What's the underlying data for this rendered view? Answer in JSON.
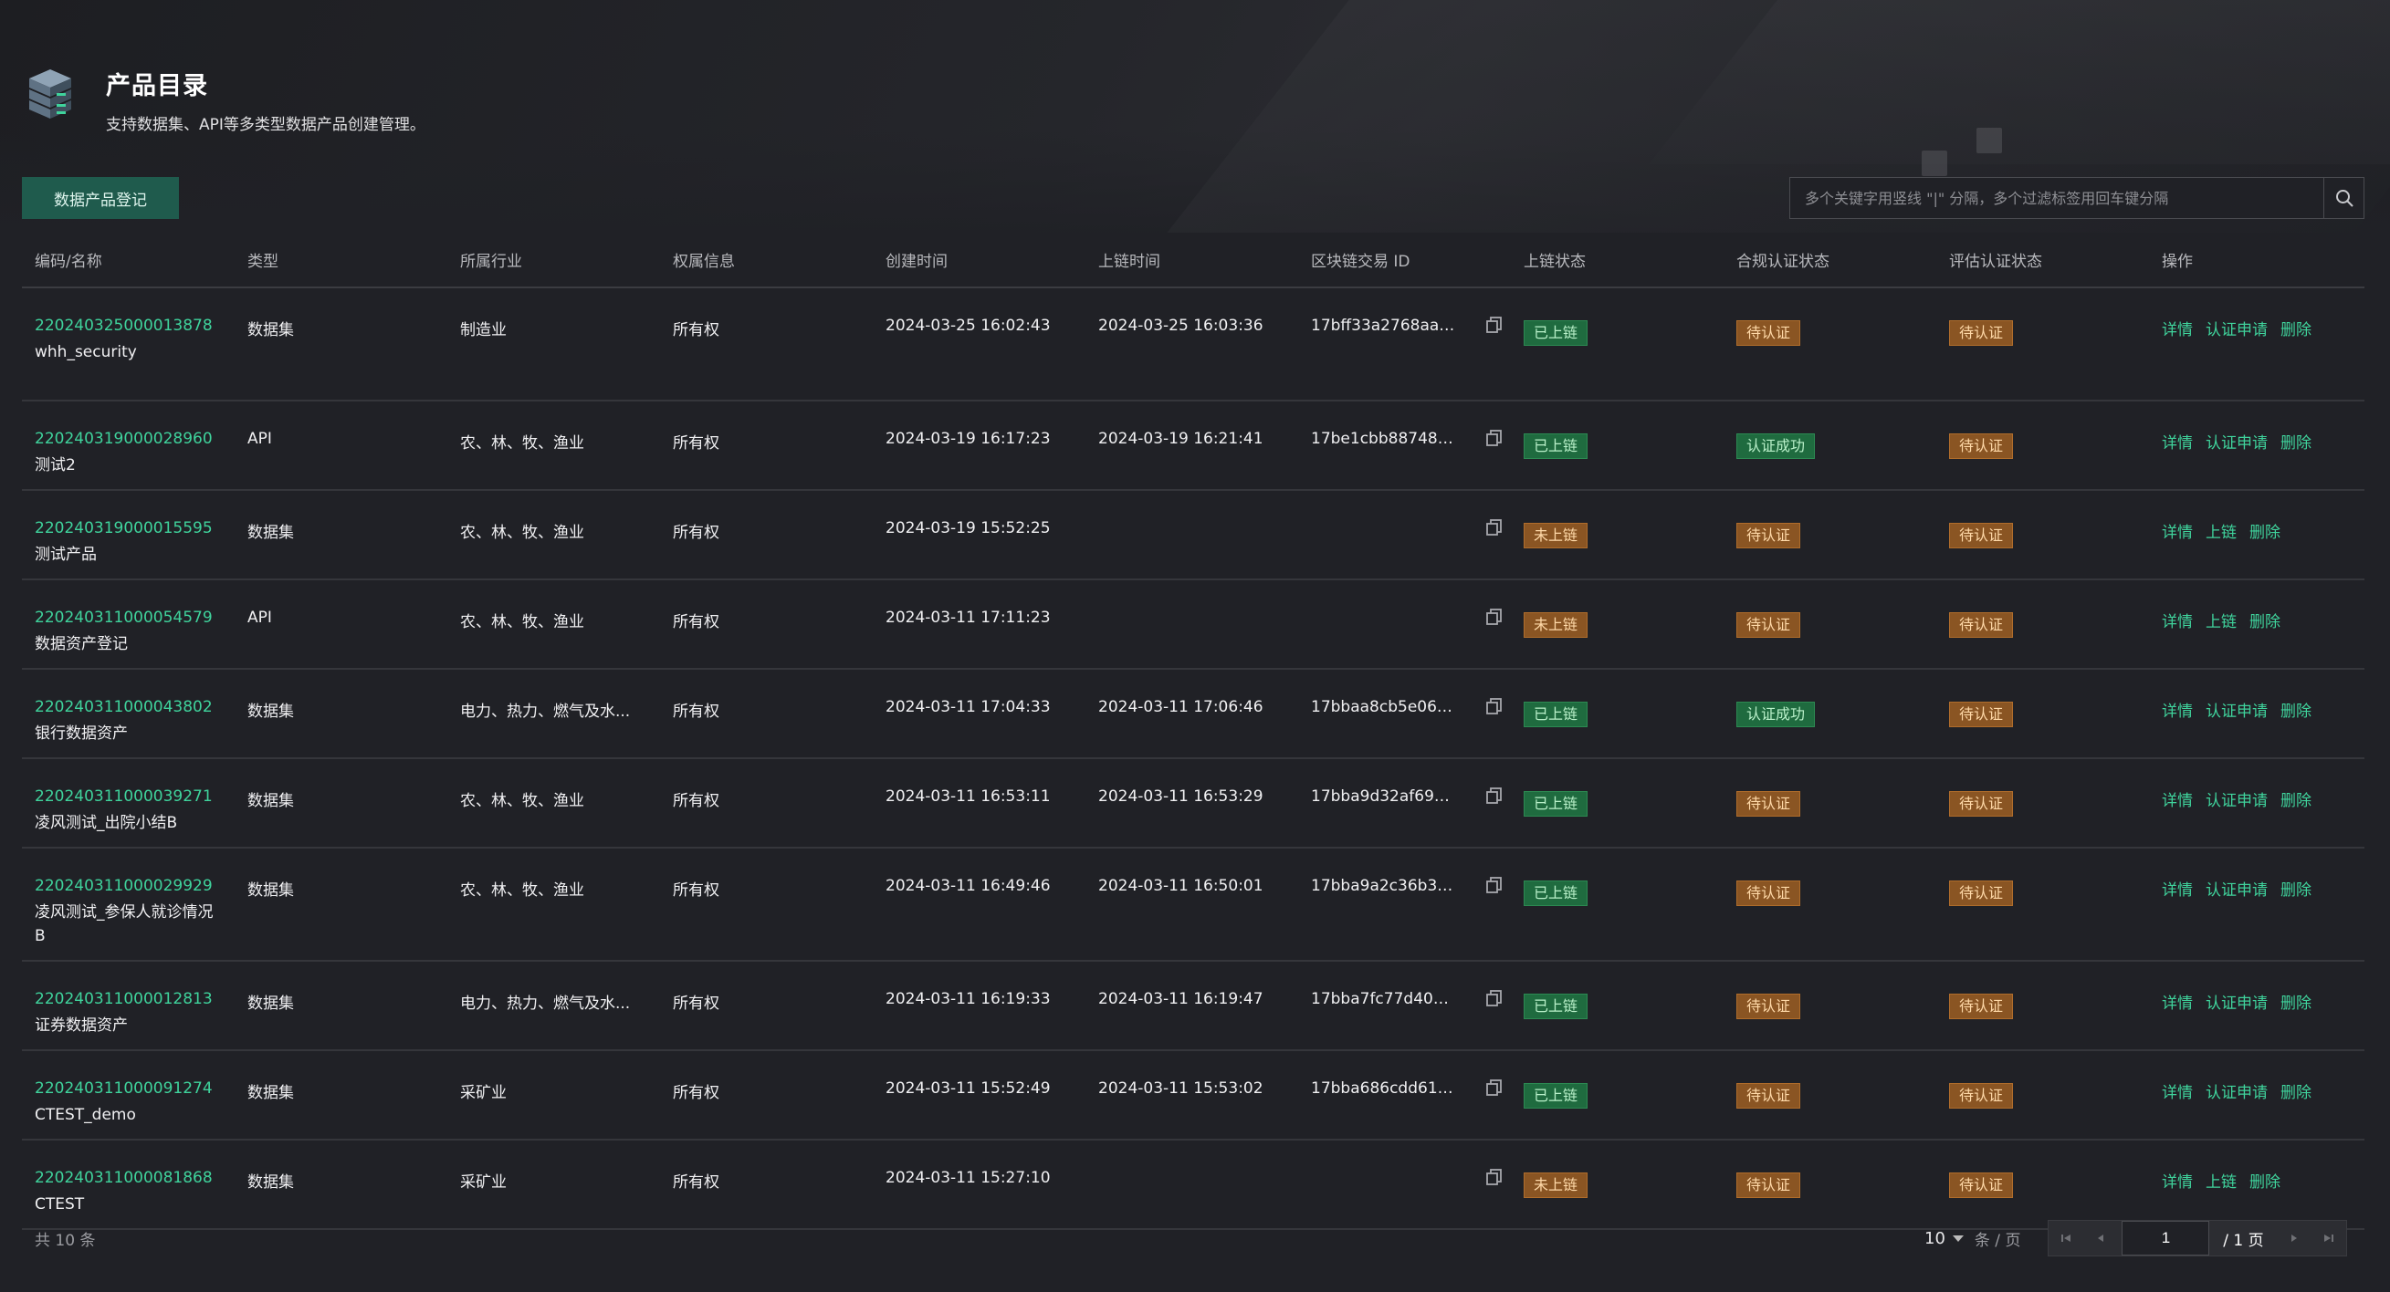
{
  "header": {
    "title": "产品目录",
    "subtitle": "支持数据集、API等多类型数据产品创建管理。"
  },
  "toolbar": {
    "register_label": "数据产品登记",
    "search_placeholder": "多个关键字用竖线 \"|\" 分隔，多个过滤标签用回车键分隔"
  },
  "table": {
    "columns": [
      "编码/名称",
      "类型",
      "所属行业",
      "权属信息",
      "创建时间",
      "上链时间",
      "区块链交易 ID",
      "上链状态",
      "合规认证状态",
      "评估认证状态",
      "操作"
    ],
    "rows": [
      {
        "code": "220240325000013878",
        "name": "whh_security",
        "type": "数据集",
        "industry": "制造业",
        "ownership": "所有权",
        "created": "2024-03-25 16:02:43",
        "chained": "2024-03-25 16:03:36",
        "txid": "17bff33a2768aac...",
        "chain_status": "已上链",
        "compliance": "待认证",
        "evaluation": "待认证",
        "ops": [
          "详情",
          "认证申请",
          "删除"
        ]
      },
      {
        "code": "220240319000028960",
        "name": "测试2",
        "type": "API",
        "industry": "农、林、牧、渔业",
        "ownership": "所有权",
        "created": "2024-03-19 16:17:23",
        "chained": "2024-03-19 16:21:41",
        "txid": "17be1cbb887480...",
        "chain_status": "已上链",
        "compliance": "认证成功",
        "evaluation": "待认证",
        "ops": [
          "详情",
          "认证申请",
          "删除"
        ]
      },
      {
        "code": "220240319000015595",
        "name": "测试产品",
        "type": "数据集",
        "industry": "农、林、牧、渔业",
        "ownership": "所有权",
        "created": "2024-03-19 15:52:25",
        "chained": "",
        "txid": "",
        "chain_status": "未上链",
        "compliance": "待认证",
        "evaluation": "待认证",
        "ops": [
          "详情",
          "上链",
          "删除"
        ]
      },
      {
        "code": "220240311000054579",
        "name": "数据资产登记",
        "type": "API",
        "industry": "农、林、牧、渔业",
        "ownership": "所有权",
        "created": "2024-03-11 17:11:23",
        "chained": "",
        "txid": "",
        "chain_status": "未上链",
        "compliance": "待认证",
        "evaluation": "待认证",
        "ops": [
          "详情",
          "上链",
          "删除"
        ]
      },
      {
        "code": "220240311000043802",
        "name": "银行数据资产",
        "type": "数据集",
        "industry": "电力、热力、燃气及水...",
        "ownership": "所有权",
        "created": "2024-03-11 17:04:33",
        "chained": "2024-03-11 17:06:46",
        "txid": "17bbaa8cb5e065...",
        "chain_status": "已上链",
        "compliance": "认证成功",
        "evaluation": "待认证",
        "ops": [
          "详情",
          "认证申请",
          "删除"
        ]
      },
      {
        "code": "220240311000039271",
        "name": "凌风测试_出院小结B",
        "type": "数据集",
        "industry": "农、林、牧、渔业",
        "ownership": "所有权",
        "created": "2024-03-11 16:53:11",
        "chained": "2024-03-11 16:53:29",
        "txid": "17bba9d32af697...",
        "chain_status": "已上链",
        "compliance": "待认证",
        "evaluation": "待认证",
        "ops": [
          "详情",
          "认证申请",
          "删除"
        ]
      },
      {
        "code": "220240311000029929",
        "name": "凌风测试_参保人就诊情况B",
        "type": "数据集",
        "industry": "农、林、牧、渔业",
        "ownership": "所有权",
        "created": "2024-03-11 16:49:46",
        "chained": "2024-03-11 16:50:01",
        "txid": "17bba9a2c36b32...",
        "chain_status": "已上链",
        "compliance": "待认证",
        "evaluation": "待认证",
        "ops": [
          "详情",
          "认证申请",
          "删除"
        ]
      },
      {
        "code": "220240311000012813",
        "name": "证券数据资产",
        "type": "数据集",
        "industry": "电力、热力、燃气及水...",
        "ownership": "所有权",
        "created": "2024-03-11 16:19:33",
        "chained": "2024-03-11 16:19:47",
        "txid": "17bba7fc77d40e...",
        "chain_status": "已上链",
        "compliance": "待认证",
        "evaluation": "待认证",
        "ops": [
          "详情",
          "认证申请",
          "删除"
        ]
      },
      {
        "code": "220240311000091274",
        "name": "CTEST_demo",
        "type": "数据集",
        "industry": "采矿业",
        "ownership": "所有权",
        "created": "2024-03-11 15:52:49",
        "chained": "2024-03-11 15:53:02",
        "txid": "17bba686cdd611...",
        "chain_status": "已上链",
        "compliance": "待认证",
        "evaluation": "待认证",
        "ops": [
          "详情",
          "认证申请",
          "删除"
        ]
      },
      {
        "code": "220240311000081868",
        "name": "CTEST",
        "type": "数据集",
        "industry": "采矿业",
        "ownership": "所有权",
        "created": "2024-03-11 15:27:10",
        "chained": "",
        "txid": "",
        "chain_status": "未上链",
        "compliance": "待认证",
        "evaluation": "待认证",
        "ops": [
          "详情",
          "上链",
          "删除"
        ]
      }
    ]
  },
  "footer": {
    "total_label": "共 10 条",
    "page_size": "10",
    "per_page_label": "条 / 页",
    "current_page": "1",
    "total_pages_label": "/ 1 页"
  },
  "colors": {
    "accent": "#3fd39c",
    "badge_green": "#1f6b3f",
    "badge_orange": "#8a5523",
    "background": "#202126"
  },
  "icons": {
    "logo": "server-stack-icon",
    "search": "search-icon",
    "copy": "copy-icon",
    "first_page": "first-page-icon",
    "prev_page": "prev-page-icon",
    "next_page": "next-page-icon",
    "last_page": "last-page-icon"
  }
}
